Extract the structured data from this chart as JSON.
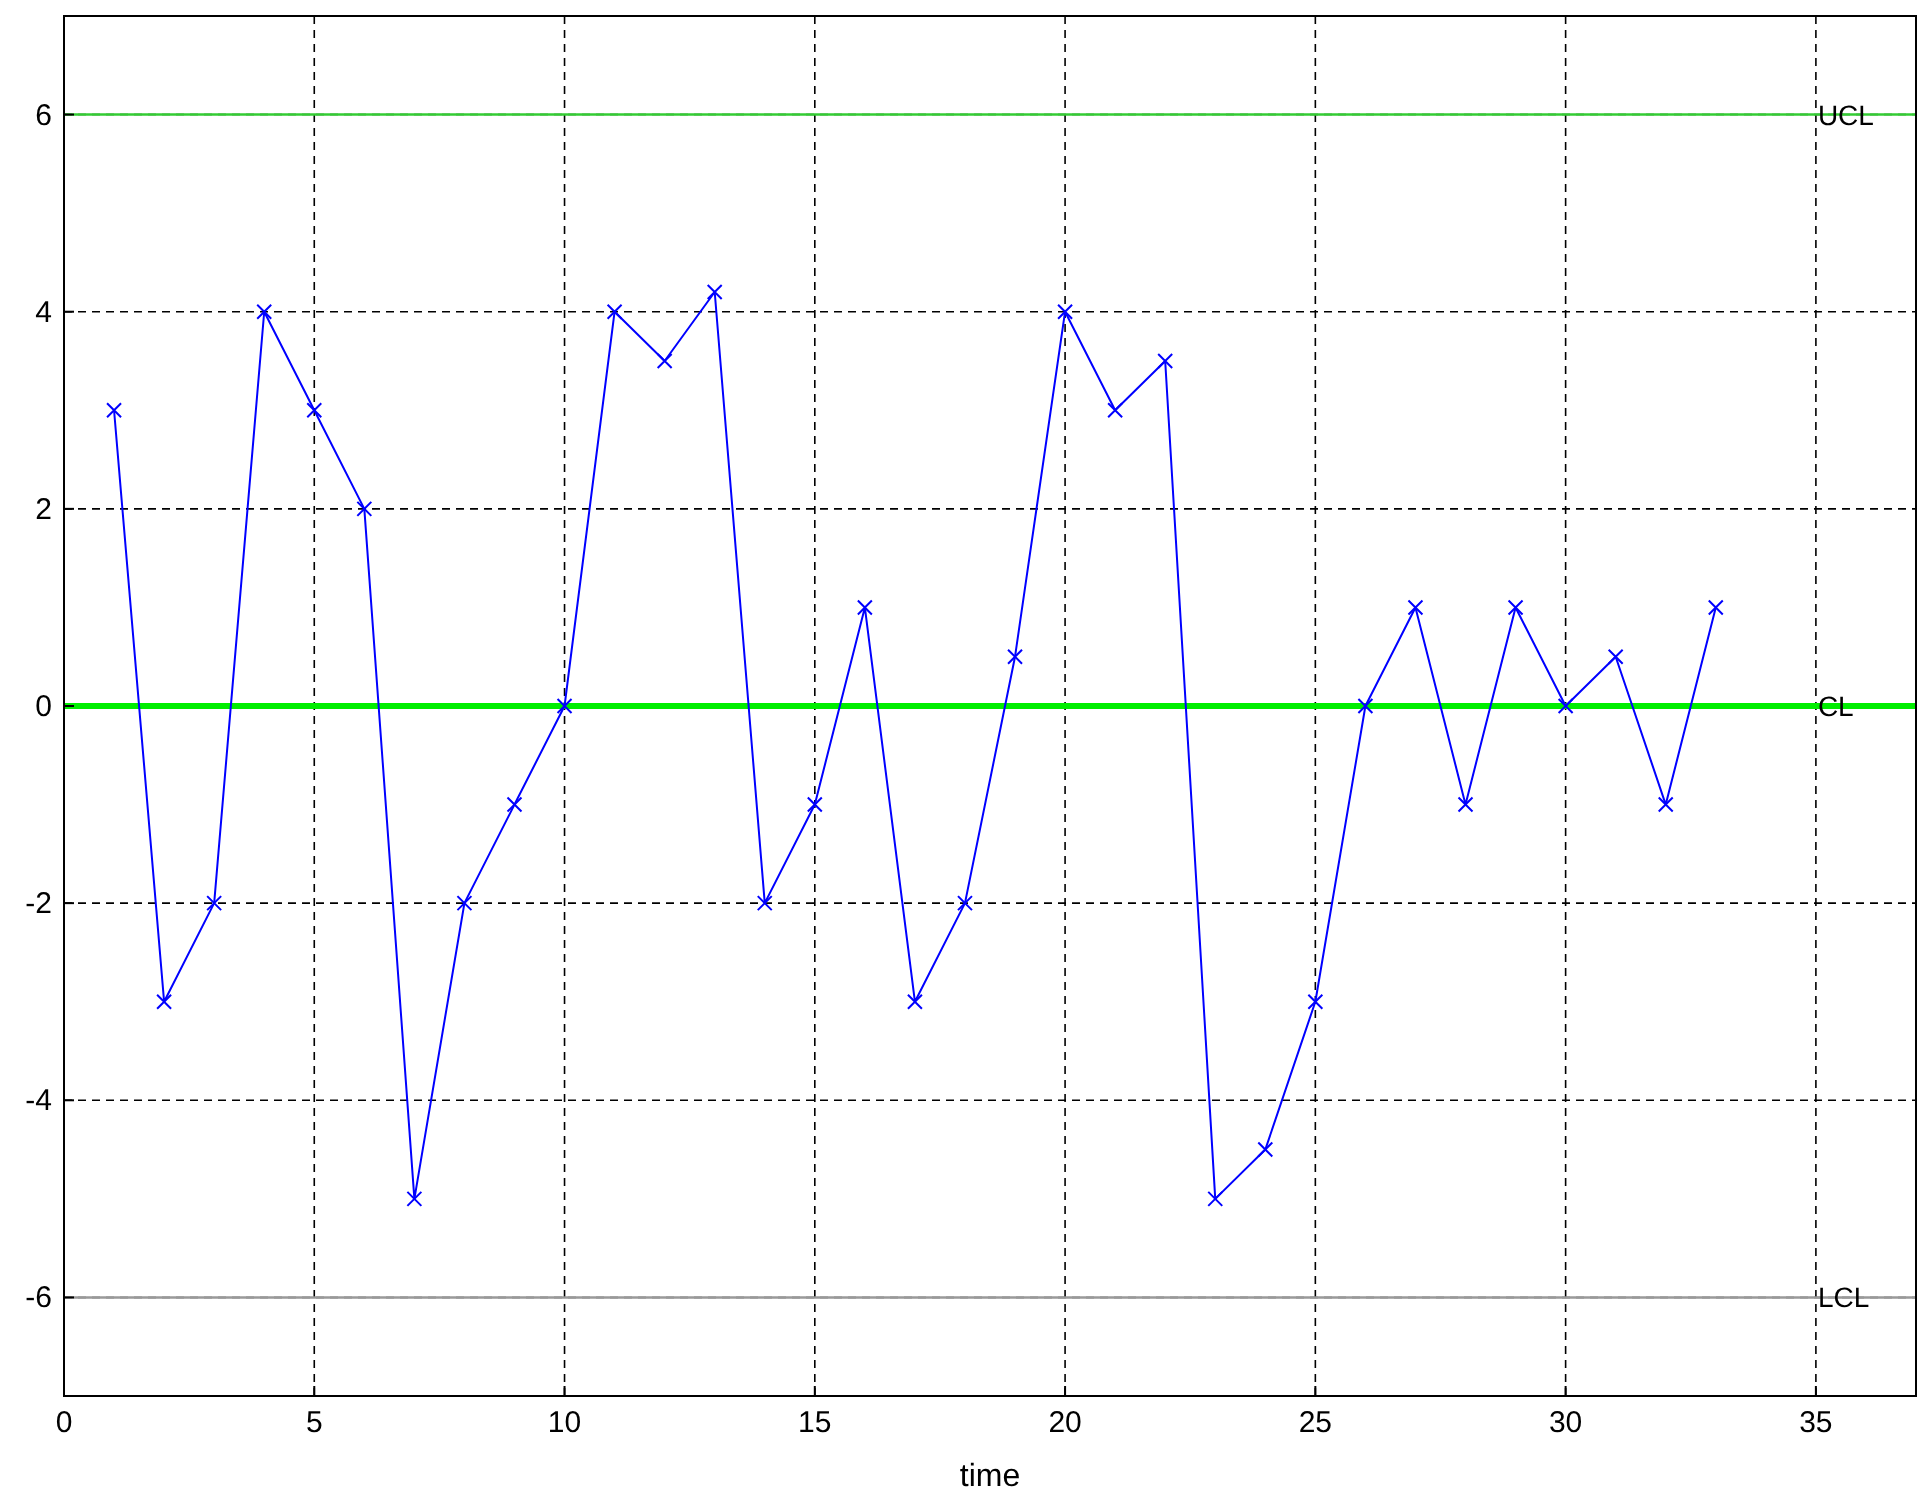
{
  "chart_data": {
    "type": "line",
    "xlabel": "time",
    "x": [
      1,
      2,
      3,
      4,
      5,
      6,
      7,
      8,
      9,
      10,
      11,
      12,
      13,
      14,
      15,
      16,
      17,
      18,
      19,
      20,
      21,
      22,
      23,
      24,
      25,
      26,
      27,
      28,
      29,
      30,
      31,
      32,
      33
    ],
    "series": [
      {
        "color": "#0000ff",
        "values": [
          3,
          -3,
          -2,
          4,
          3,
          2,
          -5,
          -2,
          -1,
          0,
          4,
          3.5,
          4.2,
          -2,
          -1,
          1,
          -3,
          -2,
          0.5,
          4,
          3,
          3.5,
          -5,
          -4.5,
          -3,
          0,
          1,
          -1,
          1,
          0,
          0.5,
          -1,
          1
        ]
      }
    ],
    "xlim": [
      0,
      37
    ],
    "xticks": [
      0,
      5,
      10,
      15,
      20,
      25,
      30,
      35
    ],
    "ylim": [
      -7,
      7
    ],
    "yticks": [
      -6,
      -4,
      -2,
      0,
      2,
      4,
      6
    ],
    "grid": true,
    "marker": "cross",
    "line_style": "solid",
    "ref_lines": [
      {
        "axis": "y",
        "value": 6,
        "label": "UCL",
        "color": "#33cc33"
      },
      {
        "axis": "y",
        "value": 0,
        "label": "CL",
        "color": "#00ee00"
      },
      {
        "axis": "y",
        "value": -6,
        "label": "LCL",
        "color": "#999999"
      }
    ]
  }
}
